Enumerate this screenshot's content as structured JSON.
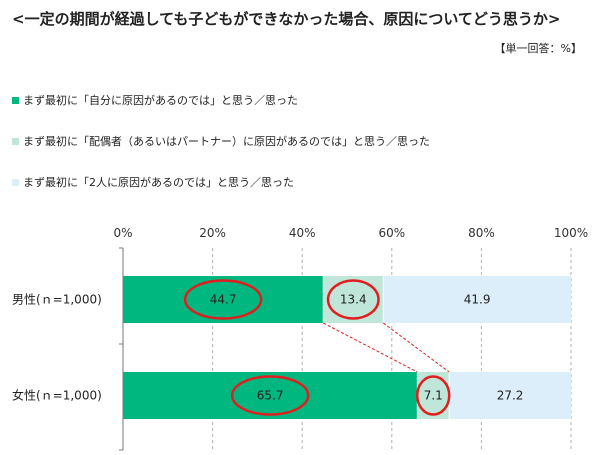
{
  "title": "<一定の期間が経過しても子どもができなかった場合、原因についてどう思うか>",
  "unit_note": "【単一回答：%】",
  "colors": {
    "series1": "#00b77f",
    "series2": "#bfe6d8",
    "series3": "#dbeef9",
    "highlight": "#e01e1e",
    "grid": "#b0b0b0",
    "connector": "#e01e1e"
  },
  "chart_data": {
    "type": "bar",
    "orientation": "horizontal",
    "stacked": true,
    "categories": [
      "男性(ｎ=1,000)",
      "女性(ｎ=1,000)"
    ],
    "series": [
      {
        "name": "まず最初に「自分に原因があるのでは」と思う／思った",
        "values": [
          44.7,
          65.7
        ]
      },
      {
        "name": "まず最初に「配偶者（あるいはパートナー）に原因があるのでは」と思う／思った",
        "values": [
          13.4,
          7.1
        ]
      },
      {
        "name": "まず最初に「2人に原因があるのでは」と思う／思った",
        "values": [
          41.9,
          27.2
        ]
      }
    ],
    "x_ticks": [
      "0%",
      "20%",
      "40%",
      "60%",
      "80%",
      "100%"
    ],
    "xlim": [
      0,
      100
    ],
    "grid": true,
    "legend_position": "top-left",
    "highlighted_series": [
      0,
      1
    ]
  }
}
